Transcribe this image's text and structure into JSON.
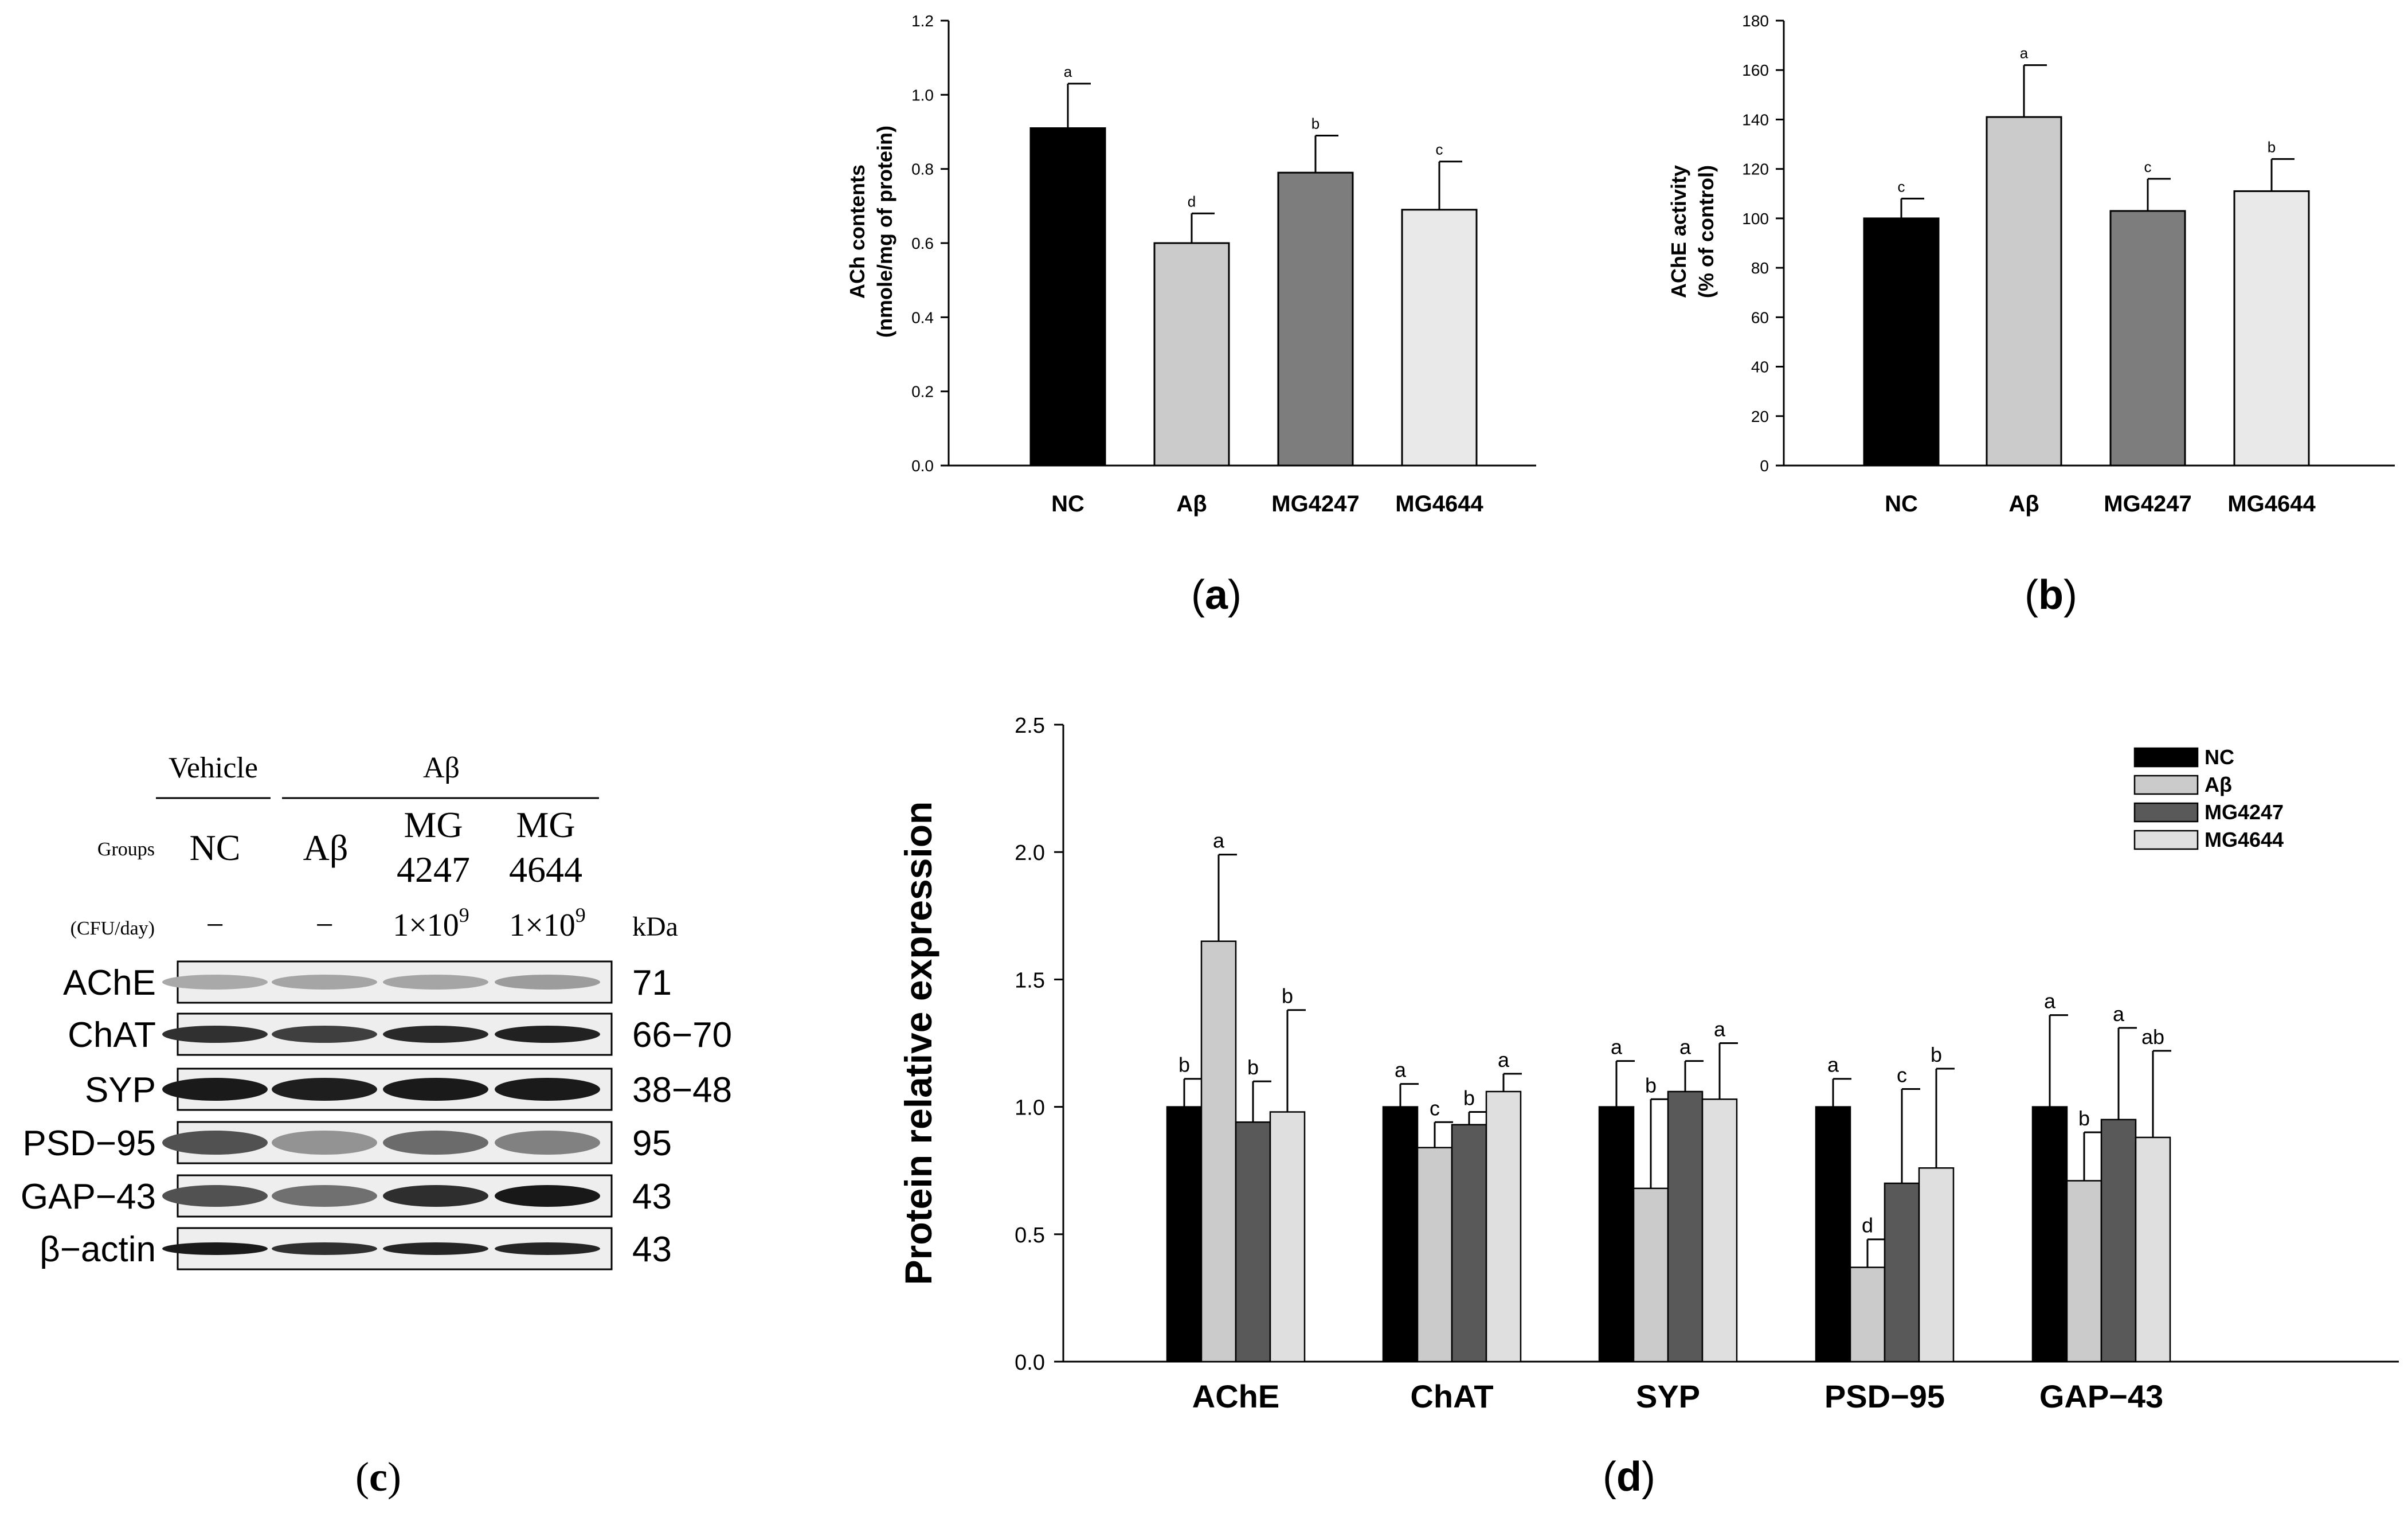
{
  "colors": {
    "NC": "#000000",
    "Abeta": "#cbcbcb",
    "MG4247": "#7d7d7d",
    "MG4644": "#e9e9e9",
    "MG4247_d": "#595959",
    "MG4644_d": "#dfdfdf"
  },
  "chart_data": [
    {
      "id": "a",
      "type": "bar",
      "panel_label": "(a)",
      "panel_letter": "a",
      "ylabel_line1": "ACh contents",
      "ylabel_line2": "(nmole/mg of protein)",
      "ylim": [
        0,
        1.2
      ],
      "yticks": [
        "0.0",
        "0.2",
        "0.4",
        "0.6",
        "0.8",
        "1.0",
        "1.2"
      ],
      "categories": [
        "NC",
        "Aβ",
        "MG4247",
        "MG4644"
      ],
      "values": [
        0.91,
        0.6,
        0.79,
        0.69
      ],
      "errors": [
        0.12,
        0.08,
        0.1,
        0.13
      ],
      "letters": [
        "a",
        "d",
        "b",
        "c"
      ]
    },
    {
      "id": "b",
      "type": "bar",
      "panel_label": "(b)",
      "panel_letter": "b",
      "ylabel_line1": "AChE activity",
      "ylabel_line2": "(% of control)",
      "ylim": [
        0,
        180
      ],
      "yticks": [
        "0",
        "20",
        "40",
        "60",
        "80",
        "100",
        "120",
        "140",
        "160",
        "180"
      ],
      "categories": [
        "NC",
        "Aβ",
        "MG4247",
        "MG4644"
      ],
      "values": [
        100,
        141,
        103,
        111
      ],
      "errors": [
        8,
        21,
        13,
        13
      ],
      "letters": [
        "c",
        "a",
        "c",
        "b"
      ]
    },
    {
      "id": "d",
      "type": "bar",
      "panel_label": "(d)",
      "panel_letter": "d",
      "ylabel": "Protein relative expression",
      "ylim": [
        0,
        2.5
      ],
      "yticks": [
        "0.0",
        "0.5",
        "1.0",
        "1.5",
        "2.0",
        "2.5"
      ],
      "categories": [
        "AChE",
        "ChAT",
        "SYP",
        "PSD−95",
        "GAP−43"
      ],
      "legend": [
        "NC",
        "Aβ",
        "MG4247",
        "MG4644"
      ],
      "series": [
        {
          "name": "NC",
          "values": [
            1.0,
            1.0,
            1.0,
            1.0,
            1.0
          ],
          "errors": [
            0.11,
            0.09,
            0.18,
            0.11,
            0.36
          ],
          "letters": [
            "b",
            "a",
            "a",
            "a",
            "a"
          ]
        },
        {
          "name": "Aβ",
          "values": [
            1.65,
            0.84,
            0.68,
            0.37,
            0.71
          ],
          "errors": [
            0.34,
            0.1,
            0.35,
            0.11,
            0.19
          ],
          "letters": [
            "a",
            "c",
            "b",
            "d",
            "b"
          ]
        },
        {
          "name": "MG4247",
          "values": [
            0.94,
            0.93,
            1.06,
            0.7,
            0.95
          ],
          "errors": [
            0.16,
            0.05,
            0.12,
            0.37,
            0.36
          ],
          "letters": [
            "b",
            "b",
            "a",
            "c",
            "a"
          ]
        },
        {
          "name": "MG4644",
          "values": [
            0.98,
            1.06,
            1.03,
            0.76,
            0.88
          ],
          "errors": [
            0.4,
            0.07,
            0.22,
            0.39,
            0.34
          ],
          "letters": [
            "b",
            "a",
            "a",
            "b",
            "ab"
          ]
        }
      ]
    }
  ],
  "blot": {
    "panel_label": "(c)",
    "panel_letter": "c",
    "vehicle_label": "Vehicle",
    "abeta_label": "Aβ",
    "groups_label": "Groups",
    "cfu_label": "(CFU/day)",
    "kda_label": "kDa",
    "lanes": [
      {
        "group_line1": "NC",
        "group_line2": "",
        "dose_base": "−",
        "dose_exp": ""
      },
      {
        "group_line1": "Aβ",
        "group_line2": "",
        "dose_base": "−",
        "dose_exp": ""
      },
      {
        "group_line1": "MG",
        "group_line2": "4247",
        "dose_base": "1×10",
        "dose_exp": "9"
      },
      {
        "group_line1": "MG",
        "group_line2": "4644",
        "dose_base": "1×10",
        "dose_exp": "9"
      }
    ],
    "proteins": [
      {
        "name": "AChE",
        "kda": "71"
      },
      {
        "name": "ChAT",
        "kda": "66−70"
      },
      {
        "name": "SYP",
        "kda": "38−48"
      },
      {
        "name": "PSD−95",
        "kda": "95"
      },
      {
        "name": "GAP−43",
        "kda": "43"
      },
      {
        "name": "β−actin",
        "kda": "43"
      }
    ]
  }
}
